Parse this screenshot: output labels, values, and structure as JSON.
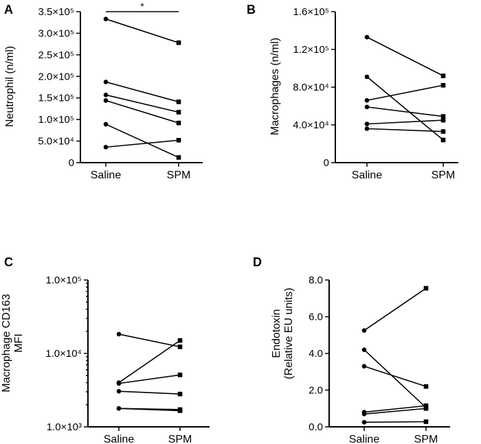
{
  "chart_data": [
    {
      "panel": "A",
      "type": "line",
      "categories": [
        "Saline",
        "SPM"
      ],
      "ylabel": "Neutrophil (n/ml)",
      "ylim": [
        0,
        350000
      ],
      "yticks": [
        {
          "v": 0,
          "label": "0"
        },
        {
          "v": 50000,
          "label": "5.0×10⁴"
        },
        {
          "v": 100000,
          "label": "1.0×10⁵"
        },
        {
          "v": 150000,
          "label": "1.5×10⁵"
        },
        {
          "v": 200000,
          "label": "2.0×10⁵"
        },
        {
          "v": 250000,
          "label": "2.5×10⁵"
        },
        {
          "v": 300000,
          "label": "3.0×10⁵"
        },
        {
          "v": 350000,
          "label": "3.5×10⁵"
        }
      ],
      "pairs": [
        [
          333000,
          278000
        ],
        [
          187000,
          141000
        ],
        [
          157000,
          117000
        ],
        [
          144000,
          92000
        ],
        [
          89000,
          12000
        ],
        [
          36000,
          52000
        ]
      ],
      "significance": "*"
    },
    {
      "panel": "B",
      "type": "line",
      "categories": [
        "Saline",
        "SPM"
      ],
      "ylabel": "Macrophages (n/ml)",
      "ylim": [
        0,
        160000
      ],
      "yticks": [
        {
          "v": 0,
          "label": "0"
        },
        {
          "v": 40000,
          "label": "4.0×10⁴"
        },
        {
          "v": 80000,
          "label": "8.0×10⁴"
        },
        {
          "v": 120000,
          "label": "1.2×10⁵"
        },
        {
          "v": 160000,
          "label": "1.6×10⁵"
        }
      ],
      "pairs": [
        [
          133000,
          92000
        ],
        [
          91000,
          24000
        ],
        [
          66000,
          82000
        ],
        [
          59000,
          49000
        ],
        [
          41000,
          45000
        ],
        [
          36000,
          33000
        ]
      ]
    },
    {
      "panel": "C",
      "type": "line",
      "scale": "log",
      "categories": [
        "Saline",
        "SPM"
      ],
      "ylabel_lines": [
        "Macrophage CD163",
        "MFI"
      ],
      "ylim": [
        1000,
        100000
      ],
      "yticks": [
        {
          "v": 1000,
          "label": "1.0×10³"
        },
        {
          "v": 10000,
          "label": "1.0×10⁴"
        },
        {
          "v": 100000,
          "label": "1.0×10⁵"
        }
      ],
      "pairs": [
        [
          18300,
          12300
        ],
        [
          4000,
          15000
        ],
        [
          3900,
          5100
        ],
        [
          3050,
          2800
        ],
        [
          1780,
          1720
        ],
        [
          1780,
          1660
        ]
      ]
    },
    {
      "panel": "D",
      "type": "line",
      "categories": [
        "Saline",
        "SPM"
      ],
      "ylabel_lines": [
        "Endotoxin",
        "(Relative EU units)"
      ],
      "ylim": [
        0,
        8
      ],
      "yticks": [
        {
          "v": 0,
          "label": "0.0"
        },
        {
          "v": 2,
          "label": "2.0"
        },
        {
          "v": 4,
          "label": "4.0"
        },
        {
          "v": 6,
          "label": "6.0"
        },
        {
          "v": 8,
          "label": "8.0"
        }
      ],
      "pairs": [
        [
          5.25,
          7.55
        ],
        [
          4.2,
          1.05
        ],
        [
          3.3,
          2.2
        ],
        [
          0.8,
          1.15
        ],
        [
          0.7,
          1.0
        ],
        [
          0.25,
          0.28
        ]
      ]
    }
  ]
}
